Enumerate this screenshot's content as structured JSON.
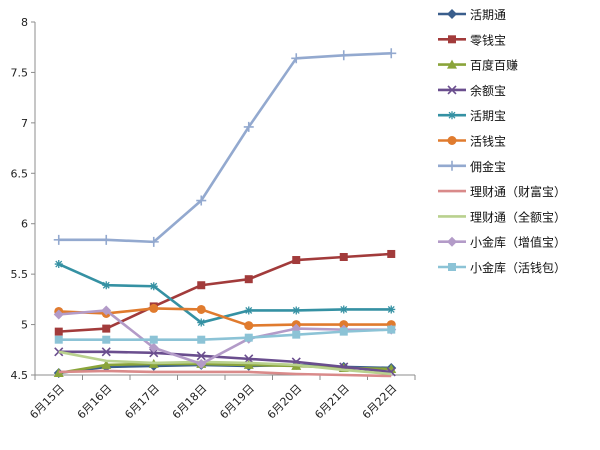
{
  "chart_data": {
    "type": "line",
    "title": "",
    "xlabel": "",
    "ylabel": "",
    "categories": [
      "6月15日",
      "6月16日",
      "6月17日",
      "6月18日",
      "6月19日",
      "6月20日",
      "6月21日",
      "6月22日"
    ],
    "ylim": [
      4.5,
      8
    ],
    "yticks": [
      4.5,
      5,
      5.5,
      6,
      6.5,
      7,
      7.5,
      8
    ],
    "grid": false,
    "legend_position": "right",
    "series": [
      {
        "name": "活期通",
        "color": "#3A5E8C",
        "marker": "diamond",
        "values": [
          4.52,
          4.58,
          4.59,
          4.6,
          4.59,
          4.6,
          4.58,
          4.57
        ]
      },
      {
        "name": "零钱宝",
        "color": "#A23B3B",
        "marker": "square",
        "values": [
          4.93,
          4.96,
          5.18,
          5.39,
          5.45,
          5.64,
          5.67,
          5.7
        ]
      },
      {
        "name": "百度百赚",
        "color": "#8AA43A",
        "marker": "triangle",
        "values": [
          4.52,
          4.6,
          4.61,
          4.61,
          4.6,
          4.59,
          4.57,
          4.56
        ]
      },
      {
        "name": "余额宝",
        "color": "#6A4E8E",
        "marker": "x",
        "values": [
          4.73,
          4.73,
          4.72,
          4.69,
          4.66,
          4.63,
          4.58,
          4.53
        ]
      },
      {
        "name": "活期宝",
        "color": "#3591A3",
        "marker": "star",
        "values": [
          5.6,
          5.39,
          5.38,
          5.02,
          5.14,
          5.14,
          5.15,
          5.15
        ]
      },
      {
        "name": "活钱宝",
        "color": "#E07B2E",
        "marker": "circle",
        "values": [
          5.13,
          5.11,
          5.16,
          5.15,
          4.99,
          5.0,
          5.0,
          5.0
        ]
      },
      {
        "name": "佣金宝",
        "color": "#93A9CF",
        "marker": "plus",
        "values": [
          5.84,
          5.84,
          5.82,
          6.23,
          6.96,
          7.64,
          7.67,
          7.69
        ]
      },
      {
        "name": "理财通（财富宝）",
        "color": "#D98A8A",
        "marker": "none",
        "values": [
          4.53,
          4.54,
          4.53,
          4.53,
          4.53,
          4.51,
          4.5,
          4.49
        ]
      },
      {
        "name": "理财通（全额宝）",
        "color": "#B9D18E",
        "marker": "none",
        "values": [
          4.73,
          4.64,
          4.62,
          4.63,
          4.62,
          4.6,
          4.55,
          4.51
        ]
      },
      {
        "name": "小金库（增值宝）",
        "color": "#B39BC8",
        "marker": "diamond",
        "values": [
          5.1,
          5.14,
          4.77,
          4.61,
          4.86,
          4.96,
          4.95,
          4.95
        ]
      },
      {
        "name": "小金库（活钱包）",
        "color": "#8CC3D6",
        "marker": "square",
        "values": [
          4.85,
          4.85,
          4.85,
          4.85,
          4.87,
          4.9,
          4.93,
          4.95
        ]
      }
    ]
  }
}
